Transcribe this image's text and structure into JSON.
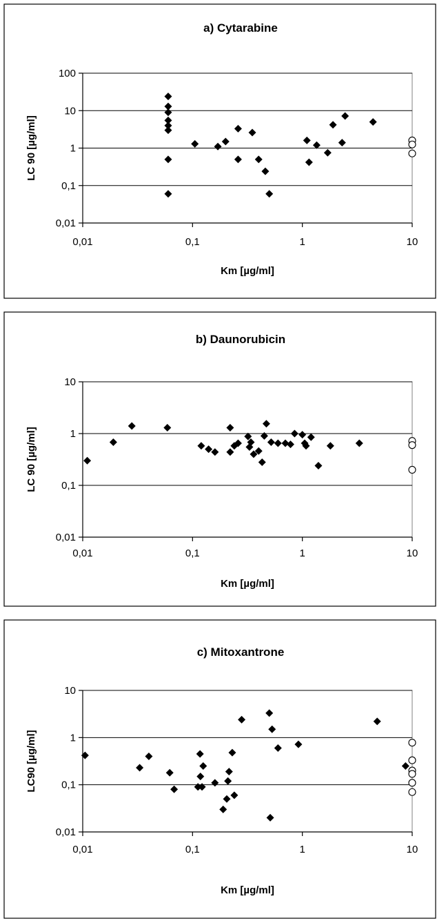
{
  "chart_data": [
    {
      "type": "scatter",
      "title": "a) Cytarabine",
      "xlabel": "Km [µg/ml]",
      "ylabel": "LC 90 [µg/ml]",
      "xscale": "log",
      "yscale": "log",
      "xlim": [
        0.01,
        10
      ],
      "ylim": [
        0.01,
        100
      ],
      "x_tick_labels": [
        "0,01",
        "0,1",
        "1",
        "10"
      ],
      "y_tick_labels": [
        "0,01",
        "0,1",
        "1",
        "10",
        "100"
      ],
      "grid": "horizontal major",
      "series": [
        {
          "marker": "filled-diamond",
          "points": [
            {
              "x": 0.06,
              "y": 24
            },
            {
              "x": 0.06,
              "y": 13
            },
            {
              "x": 0.06,
              "y": 9
            },
            {
              "x": 0.06,
              "y": 5.5
            },
            {
              "x": 0.06,
              "y": 4
            },
            {
              "x": 0.06,
              "y": 3
            },
            {
              "x": 0.06,
              "y": 0.5
            },
            {
              "x": 0.06,
              "y": 0.06
            },
            {
              "x": 0.105,
              "y": 1.3
            },
            {
              "x": 0.17,
              "y": 1.1
            },
            {
              "x": 0.2,
              "y": 1.5
            },
            {
              "x": 0.26,
              "y": 3.3
            },
            {
              "x": 0.26,
              "y": 0.5
            },
            {
              "x": 0.35,
              "y": 2.6
            },
            {
              "x": 0.4,
              "y": 0.5
            },
            {
              "x": 0.46,
              "y": 0.24
            },
            {
              "x": 0.5,
              "y": 0.06
            },
            {
              "x": 1.1,
              "y": 1.6
            },
            {
              "x": 1.15,
              "y": 0.42
            },
            {
              "x": 1.35,
              "y": 1.2
            },
            {
              "x": 1.7,
              "y": 0.75
            },
            {
              "x": 1.9,
              "y": 4.2
            },
            {
              "x": 2.3,
              "y": 1.4
            },
            {
              "x": 2.45,
              "y": 7.2
            },
            {
              "x": 4.4,
              "y": 5
            }
          ]
        },
        {
          "marker": "open-circle",
          "points": [
            {
              "x": 10,
              "y": 1.6
            },
            {
              "x": 10,
              "y": 1.25
            },
            {
              "x": 10,
              "y": 0.72
            }
          ]
        }
      ]
    },
    {
      "type": "scatter",
      "title": "b) Daunorubicin",
      "xlabel": "Km [µg/ml]",
      "ylabel": "LC 90 [µg/ml]",
      "xscale": "log",
      "yscale": "log",
      "xlim": [
        0.01,
        10
      ],
      "ylim": [
        0.01,
        10
      ],
      "x_tick_labels": [
        "0,01",
        "0,1",
        "1",
        "10"
      ],
      "y_tick_labels": [
        "0,01",
        "0,1",
        "1",
        "10"
      ],
      "grid": "horizontal major",
      "series": [
        {
          "marker": "filled-diamond",
          "points": [
            {
              "x": 0.011,
              "y": 0.3
            },
            {
              "x": 0.019,
              "y": 0.68
            },
            {
              "x": 0.028,
              "y": 1.4
            },
            {
              "x": 0.059,
              "y": 1.3
            },
            {
              "x": 0.12,
              "y": 0.58
            },
            {
              "x": 0.14,
              "y": 0.5
            },
            {
              "x": 0.16,
              "y": 0.44
            },
            {
              "x": 0.22,
              "y": 1.3
            },
            {
              "x": 0.22,
              "y": 0.44
            },
            {
              "x": 0.24,
              "y": 0.58
            },
            {
              "x": 0.26,
              "y": 0.65
            },
            {
              "x": 0.32,
              "y": 0.88
            },
            {
              "x": 0.33,
              "y": 0.55
            },
            {
              "x": 0.34,
              "y": 0.68
            },
            {
              "x": 0.36,
              "y": 0.4
            },
            {
              "x": 0.4,
              "y": 0.46
            },
            {
              "x": 0.43,
              "y": 0.28
            },
            {
              "x": 0.45,
              "y": 0.9
            },
            {
              "x": 0.47,
              "y": 1.55
            },
            {
              "x": 0.52,
              "y": 0.68
            },
            {
              "x": 0.6,
              "y": 0.65
            },
            {
              "x": 0.7,
              "y": 0.65
            },
            {
              "x": 0.78,
              "y": 0.62
            },
            {
              "x": 0.85,
              "y": 1.0
            },
            {
              "x": 1.0,
              "y": 0.95
            },
            {
              "x": 1.05,
              "y": 0.65
            },
            {
              "x": 1.08,
              "y": 0.58
            },
            {
              "x": 1.2,
              "y": 0.85
            },
            {
              "x": 1.4,
              "y": 0.24
            },
            {
              "x": 1.8,
              "y": 0.58
            },
            {
              "x": 3.3,
              "y": 0.65
            }
          ]
        },
        {
          "marker": "open-circle",
          "points": [
            {
              "x": 10,
              "y": 0.72
            },
            {
              "x": 10,
              "y": 0.6
            },
            {
              "x": 10,
              "y": 0.2
            }
          ]
        }
      ]
    },
    {
      "type": "scatter",
      "title": "c) Mitoxantrone",
      "xlabel": "Km [µg/ml]",
      "ylabel": "LC90 [µg/ml]",
      "xscale": "log",
      "yscale": "log",
      "xlim": [
        0.01,
        10
      ],
      "ylim": [
        0.01,
        10
      ],
      "x_tick_labels": [
        "0,01",
        "0,1",
        "1",
        "10"
      ],
      "y_tick_labels": [
        "0,01",
        "0,1",
        "1",
        "10"
      ],
      "grid": "horizontal major",
      "series": [
        {
          "marker": "filled-diamond",
          "points": [
            {
              "x": 0.0105,
              "y": 0.42
            },
            {
              "x": 0.033,
              "y": 0.23
            },
            {
              "x": 0.04,
              "y": 0.4
            },
            {
              "x": 0.062,
              "y": 0.18
            },
            {
              "x": 0.068,
              "y": 0.08
            },
            {
              "x": 0.112,
              "y": 0.09
            },
            {
              "x": 0.117,
              "y": 0.45
            },
            {
              "x": 0.118,
              "y": 0.15
            },
            {
              "x": 0.122,
              "y": 0.09
            },
            {
              "x": 0.125,
              "y": 0.25
            },
            {
              "x": 0.16,
              "y": 0.11
            },
            {
              "x": 0.19,
              "y": 0.03
            },
            {
              "x": 0.205,
              "y": 0.05
            },
            {
              "x": 0.21,
              "y": 0.12
            },
            {
              "x": 0.215,
              "y": 0.19
            },
            {
              "x": 0.23,
              "y": 0.48
            },
            {
              "x": 0.24,
              "y": 0.06
            },
            {
              "x": 0.28,
              "y": 2.4
            },
            {
              "x": 0.5,
              "y": 3.3
            },
            {
              "x": 0.51,
              "y": 0.02
            },
            {
              "x": 0.53,
              "y": 1.5
            },
            {
              "x": 0.6,
              "y": 0.6
            },
            {
              "x": 0.92,
              "y": 0.72
            },
            {
              "x": 4.8,
              "y": 2.2
            },
            {
              "x": 8.7,
              "y": 0.25
            }
          ]
        },
        {
          "marker": "open-circle",
          "points": [
            {
              "x": 10,
              "y": 0.78
            },
            {
              "x": 10,
              "y": 0.33
            },
            {
              "x": 10,
              "y": 0.2
            },
            {
              "x": 10,
              "y": 0.17
            },
            {
              "x": 10,
              "y": 0.11
            },
            {
              "x": 10,
              "y": 0.07
            }
          ]
        }
      ]
    }
  ]
}
